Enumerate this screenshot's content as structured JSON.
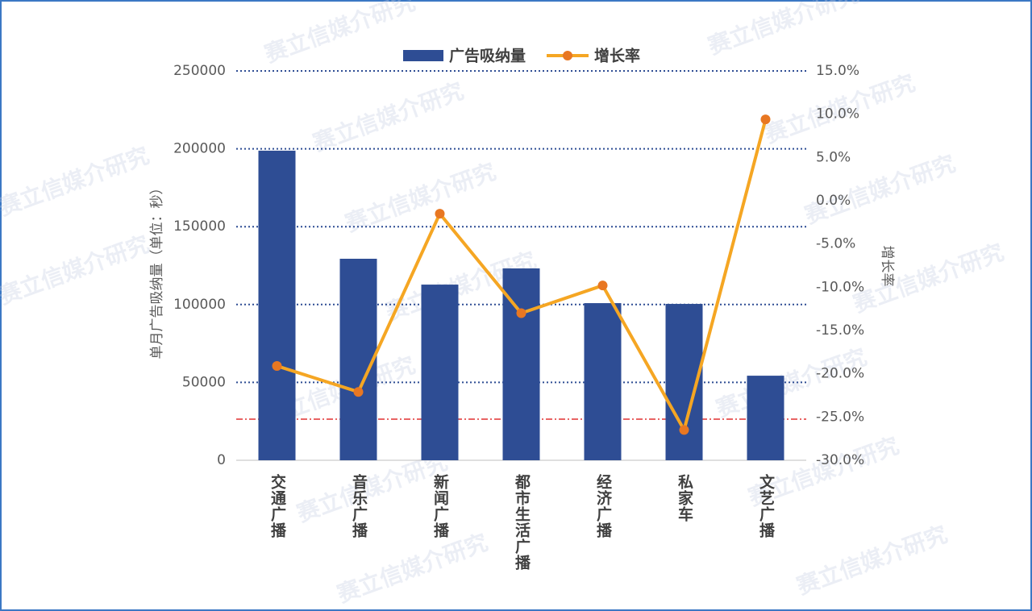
{
  "chart_data": {
    "type": "bar-line",
    "categories": [
      "交通广播",
      "音乐广播",
      "新闻广播",
      "都市生活广播",
      "经济广播",
      "私家车",
      "文艺广播"
    ],
    "series": [
      {
        "name": "广告吸纳量",
        "color": "#2e4d94",
        "values": [
          198800,
          129400,
          112800,
          123200,
          100900,
          100400,
          54300
        ]
      },
      {
        "name": "增长率",
        "color": "#f5a623",
        "marker_color": "#e87722",
        "axis": "y2",
        "values": [
          -19.1,
          -22.1,
          -1.5,
          -13.0,
          -9.8,
          -26.5,
          9.4
        ]
      }
    ],
    "ylabel": "单月广告吸纳量（单位：秒）",
    "y2label": "增长率",
    "ylim": [
      0,
      250000
    ],
    "yticks": [
      0,
      50000,
      100000,
      150000,
      200000,
      250000
    ],
    "y2lim": [
      -30,
      15
    ],
    "y2ticks": [
      {
        "value": -30,
        "label": "-30.0%"
      },
      {
        "value": -25,
        "label": "-25.0%"
      },
      {
        "value": -20,
        "label": "-20.0%"
      },
      {
        "value": -15,
        "label": "-15.0%"
      },
      {
        "value": -10,
        "label": "-10.0%"
      },
      {
        "value": -5,
        "label": "-5.0%"
      },
      {
        "value": 0,
        "label": "0.0%"
      },
      {
        "value": 5,
        "label": "5.0%"
      },
      {
        "value": 10,
        "label": "10.0%"
      },
      {
        "value": 15,
        "label": "15.0%"
      }
    ],
    "grid": true,
    "grid_color": "#2e4d94",
    "reference_line": {
      "value": 26400,
      "color": "#e03030"
    },
    "legend": "top",
    "watermark": "赛立信媒介研究"
  }
}
